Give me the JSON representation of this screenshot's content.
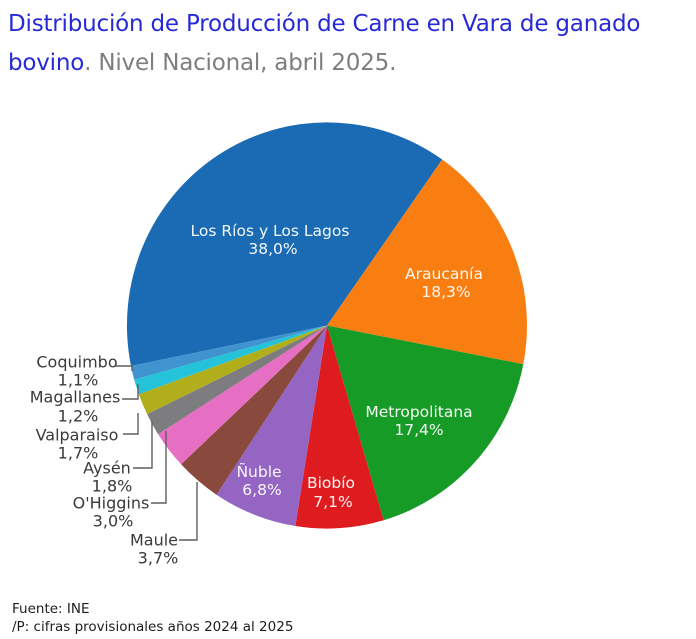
{
  "title": {
    "line1": "Distribución de Producción de Carne en Vara de ganado",
    "line2_highlight": "bovino",
    "line2_rest": ". Nivel Nacional, abril 2025.",
    "highlight_color": "#2629d6",
    "rest_color": "#7e7e7e"
  },
  "footer": {
    "line1": "Fuente: INE",
    "line2": "/P: cifras provisionales años 2024 al 2025"
  },
  "chart_data": {
    "type": "pie",
    "title": "Distribución de Producción de Carne en Vara de ganado bovino. Nivel Nacional, abril 2025.",
    "unit": "percent",
    "direction": "clockwise",
    "start_angle_deg": 191.5,
    "label_text_color_inside": "#ffffff",
    "label_text_color_outside": "#3a3a3a",
    "slices": [
      {
        "label": "Los Ríos y Los Lagos",
        "value": 38.0,
        "pct": "38,0%",
        "color": "#1a6bb3",
        "label_placement": "inside"
      },
      {
        "label": "Araucanía",
        "value": 18.3,
        "pct": "18,3%",
        "color": "#f97e12",
        "label_placement": "inside"
      },
      {
        "label": "Metropolitana",
        "value": 17.4,
        "pct": "17,4%",
        "color": "#169b27",
        "label_placement": "inside"
      },
      {
        "label": "Biobío",
        "value": 7.1,
        "pct": "7,1%",
        "color": "#de1b1e",
        "label_placement": "inside"
      },
      {
        "label": "Ñuble",
        "value": 6.8,
        "pct": "6,8%",
        "color": "#9565c4",
        "label_placement": "inside"
      },
      {
        "label": "Maule",
        "value": 3.7,
        "pct": "3,7%",
        "color": "#8a493d",
        "label_placement": "outside"
      },
      {
        "label": "O'Higgins",
        "value": 3.0,
        "pct": "3,0%",
        "color": "#e66fc3",
        "label_placement": "outside"
      },
      {
        "label": "Aysén",
        "value": 1.8,
        "pct": "1,8%",
        "color": "#7d7d7f",
        "label_placement": "outside"
      },
      {
        "label": "Valparaiso",
        "value": 1.7,
        "pct": "1,7%",
        "color": "#b1ae1c",
        "label_placement": "outside"
      },
      {
        "label": "Magallanes",
        "value": 1.2,
        "pct": "1,2%",
        "color": "#25c3d9",
        "label_placement": "outside"
      },
      {
        "label": "Coquimbo",
        "value": 1.1,
        "pct": "1,1%",
        "color": "#3f93cf",
        "label_placement": "outside"
      }
    ]
  }
}
